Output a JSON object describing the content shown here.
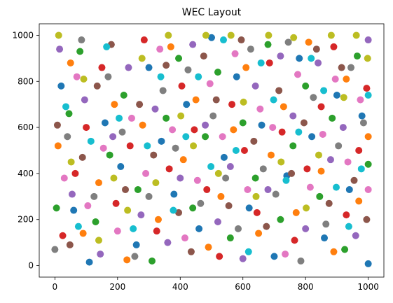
{
  "chart_data": {
    "type": "scatter",
    "title": "WEC Layout",
    "xlabel": "",
    "ylabel": "",
    "xlim": [
      -50,
      1050
    ],
    "ylim": [
      -50,
      1050
    ],
    "x_ticks": [
      0,
      200,
      400,
      600,
      800,
      1000
    ],
    "y_ticks": [
      0,
      200,
      400,
      600,
      800,
      1000
    ],
    "grid": false,
    "legend": "none",
    "x_tick_labels": [
      "0",
      "200",
      "400",
      "600",
      "800",
      "1000"
    ],
    "y_tick_labels": [
      "0",
      "200",
      "400",
      "600",
      "800",
      "1000"
    ],
    "palette": [
      "#1f77b4",
      "#ff7f0e",
      "#2ca02c",
      "#d62728",
      "#9467bd",
      "#8c564b",
      "#e377c2",
      "#7f7f7f",
      "#bcbd22",
      "#17becf"
    ],
    "series_count": 10,
    "series": [
      {
        "points": [
          [
            20,
            780
          ],
          [
            60,
            240
          ],
          [
            110,
            15
          ],
          [
            160,
            620
          ],
          [
            210,
            430
          ],
          [
            260,
            90
          ],
          [
            300,
            860
          ],
          [
            340,
            540
          ],
          [
            380,
            310
          ],
          [
            420,
            700
          ],
          [
            460,
            160
          ],
          [
            500,
            990
          ],
          [
            540,
            470
          ],
          [
            580,
            820
          ],
          [
            620,
            250
          ],
          [
            660,
            610
          ],
          [
            700,
            40
          ],
          [
            740,
            390
          ],
          [
            780,
            900
          ],
          [
            820,
            560
          ],
          [
            860,
            120
          ],
          [
            900,
            740
          ],
          [
            940,
            330
          ],
          [
            980,
            650
          ],
          [
            1000,
            8
          ]
        ]
      },
      {
        "points": [
          [
            10,
            520
          ],
          [
            50,
            880
          ],
          [
            90,
            140
          ],
          [
            140,
            360
          ],
          [
            190,
            700
          ],
          [
            230,
            25
          ],
          [
            280,
            610
          ],
          [
            330,
            200
          ],
          [
            370,
            950
          ],
          [
            410,
            460
          ],
          [
            450,
            720
          ],
          [
            490,
            80
          ],
          [
            530,
            300
          ],
          [
            570,
            590
          ],
          [
            610,
            860
          ],
          [
            650,
            140
          ],
          [
            690,
            480
          ],
          [
            730,
            690
          ],
          [
            770,
            230
          ],
          [
            810,
            970
          ],
          [
            850,
            410
          ],
          [
            890,
            60
          ],
          [
            930,
            810
          ],
          [
            970,
            280
          ],
          [
            1000,
            560
          ]
        ]
      },
      {
        "points": [
          [
            5,
            250
          ],
          [
            45,
            660
          ],
          [
            80,
            930
          ],
          [
            130,
            190
          ],
          [
            175,
            480
          ],
          [
            220,
            740
          ],
          [
            265,
            330
          ],
          [
            310,
            20
          ],
          [
            355,
            640
          ],
          [
            395,
            900
          ],
          [
            440,
            250
          ],
          [
            480,
            560
          ],
          [
            520,
            840
          ],
          [
            560,
            120
          ],
          [
            600,
            620
          ],
          [
            640,
            380
          ],
          [
            680,
            960
          ],
          [
            720,
            200
          ],
          [
            760,
            520
          ],
          [
            800,
            780
          ],
          [
            845,
            300
          ],
          [
            885,
            640
          ],
          [
            925,
            70
          ],
          [
            965,
            910
          ],
          [
            1000,
            440
          ]
        ]
      },
      {
        "points": [
          [
            25,
            130
          ],
          [
            65,
            400
          ],
          [
            100,
            600
          ],
          [
            150,
            860
          ],
          [
            195,
            270
          ],
          [
            240,
            520
          ],
          [
            285,
            980
          ],
          [
            325,
            150
          ],
          [
            365,
            420
          ],
          [
            405,
            780
          ],
          [
            445,
            590
          ],
          [
            485,
            330
          ],
          [
            525,
            40
          ],
          [
            565,
            700
          ],
          [
            605,
            500
          ],
          [
            645,
            230
          ],
          [
            685,
            880
          ],
          [
            725,
            580
          ],
          [
            765,
            110
          ],
          [
            805,
            420
          ],
          [
            850,
            690
          ],
          [
            890,
            950
          ],
          [
            930,
            220
          ],
          [
            970,
            500
          ],
          [
            995,
            770
          ]
        ]
      },
      {
        "points": [
          [
            15,
            940
          ],
          [
            55,
            310
          ],
          [
            95,
            720
          ],
          [
            145,
            50
          ],
          [
            185,
            560
          ],
          [
            235,
            860
          ],
          [
            275,
            220
          ],
          [
            320,
            680
          ],
          [
            360,
            100
          ],
          [
            400,
            380
          ],
          [
            440,
            960
          ],
          [
            480,
            610
          ],
          [
            520,
            190
          ],
          [
            560,
            430
          ],
          [
            600,
            30
          ],
          [
            640,
            780
          ],
          [
            680,
            330
          ],
          [
            720,
            910
          ],
          [
            760,
            650
          ],
          [
            800,
            160
          ],
          [
            840,
            880
          ],
          [
            880,
            460
          ],
          [
            920,
            600
          ],
          [
            960,
            130
          ],
          [
            1000,
            980
          ]
        ]
      },
      {
        "points": [
          [
            8,
            610
          ],
          [
            48,
            90
          ],
          [
            88,
            470
          ],
          [
            135,
            780
          ],
          [
            180,
            960
          ],
          [
            225,
            330
          ],
          [
            270,
            700
          ],
          [
            315,
            480
          ],
          [
            355,
            870
          ],
          [
            395,
            230
          ],
          [
            435,
            60
          ],
          [
            475,
            910
          ],
          [
            515,
            720
          ],
          [
            555,
            260
          ],
          [
            595,
            980
          ],
          [
            635,
            540
          ],
          [
            675,
            170
          ],
          [
            715,
            760
          ],
          [
            755,
            400
          ],
          [
            795,
            620
          ],
          [
            835,
            940
          ],
          [
            875,
            270
          ],
          [
            915,
            860
          ],
          [
            955,
            370
          ],
          [
            995,
            200
          ]
        ]
      },
      {
        "points": [
          [
            30,
            380
          ],
          [
            70,
            820
          ],
          [
            105,
            260
          ],
          [
            155,
            510
          ],
          [
            200,
            150
          ],
          [
            245,
            640
          ],
          [
            290,
            400
          ],
          [
            335,
            940
          ],
          [
            375,
            590
          ],
          [
            415,
            120
          ],
          [
            455,
            370
          ],
          [
            495,
            790
          ],
          [
            535,
            560
          ],
          [
            575,
            920
          ],
          [
            615,
            330
          ],
          [
            655,
            680
          ],
          [
            695,
            600
          ],
          [
            735,
            50
          ],
          [
            775,
            830
          ],
          [
            815,
            340
          ],
          [
            855,
            570
          ],
          [
            895,
            810
          ],
          [
            935,
            450
          ],
          [
            975,
            720
          ],
          [
            1000,
            330
          ]
        ]
      },
      {
        "points": [
          [
            0,
            70
          ],
          [
            40,
            560
          ],
          [
            85,
            980
          ],
          [
            125,
            300
          ],
          [
            170,
            820
          ],
          [
            215,
            580
          ],
          [
            255,
            40
          ],
          [
            300,
            300
          ],
          [
            345,
            760
          ],
          [
            385,
            510
          ],
          [
            425,
            850
          ],
          [
            465,
            270
          ],
          [
            505,
            650
          ],
          [
            545,
            380
          ],
          [
            585,
            160
          ],
          [
            625,
            940
          ],
          [
            665,
            420
          ],
          [
            705,
            310
          ],
          [
            745,
            970
          ],
          [
            785,
            20
          ],
          [
            825,
            730
          ],
          [
            865,
            180
          ],
          [
            905,
            520
          ],
          [
            945,
            860
          ],
          [
            985,
            620
          ]
        ]
      },
      {
        "points": [
          [
            12,
            1000
          ],
          [
            52,
            450
          ],
          [
            92,
            810
          ],
          [
            140,
            110
          ],
          [
            188,
            380
          ],
          [
            232,
            240
          ],
          [
            278,
            900
          ],
          [
            322,
            360
          ],
          [
            362,
            1000
          ],
          [
            402,
            650
          ],
          [
            442,
            520
          ],
          [
            482,
            1000
          ],
          [
            522,
            400
          ],
          [
            562,
            1000
          ],
          [
            602,
            710
          ],
          [
            642,
            300
          ],
          [
            682,
            1000
          ],
          [
            722,
            450
          ],
          [
            762,
            990
          ],
          [
            802,
            250
          ],
          [
            842,
            480
          ],
          [
            882,
            1000
          ],
          [
            922,
            730
          ],
          [
            962,
            1000
          ],
          [
            998,
            900
          ]
        ]
      },
      {
        "points": [
          [
            35,
            690
          ],
          [
            75,
            170
          ],
          [
            115,
            540
          ],
          [
            165,
            950
          ],
          [
            205,
            640
          ],
          [
            250,
            160
          ],
          [
            295,
            520
          ],
          [
            338,
            820
          ],
          [
            378,
            240
          ],
          [
            418,
            560
          ],
          [
            458,
            820
          ],
          [
            498,
            430
          ],
          [
            538,
            980
          ],
          [
            578,
            500
          ],
          [
            618,
            60
          ],
          [
            658,
            880
          ],
          [
            698,
            720
          ],
          [
            738,
            370
          ],
          [
            778,
            580
          ],
          [
            818,
            900
          ],
          [
            858,
            760
          ],
          [
            898,
            340
          ],
          [
            938,
            170
          ],
          [
            978,
            420
          ],
          [
            1000,
            740
          ]
        ]
      }
    ]
  }
}
